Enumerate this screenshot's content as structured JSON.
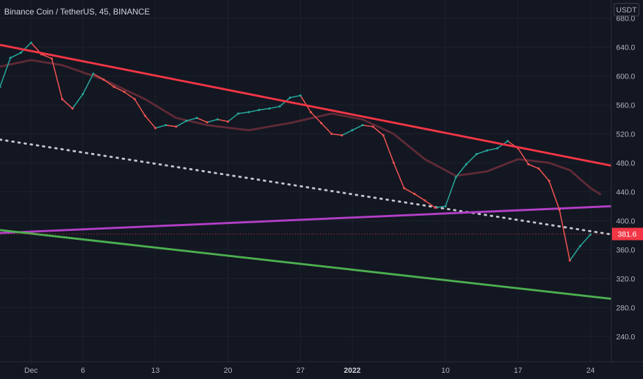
{
  "chart_data": {
    "type": "line",
    "title": "Binance Coin / TetherUS, 45, BINANCE",
    "currency_label": "USDT",
    "ylim": [
      205,
      705
    ],
    "y_ticks": [
      680.0,
      640.0,
      600.0,
      560.0,
      520.0,
      480.0,
      440.0,
      400.0,
      360.0,
      320.0,
      280.0,
      240.0
    ],
    "y_tick_labels": [
      "680.0",
      "640.0",
      "600.0",
      "560.0",
      "520.0",
      "480.0",
      "440.0",
      "400.0",
      "360.0",
      "320.0",
      "280.0",
      "240.0"
    ],
    "x_range": [
      "2021-11-28",
      "2022-01-26"
    ],
    "x_ticks": [
      {
        "date": "2021-12-01",
        "label": "Dec",
        "bold": false
      },
      {
        "date": "2021-12-06",
        "label": "6",
        "bold": false
      },
      {
        "date": "2021-12-13",
        "label": "13",
        "bold": false
      },
      {
        "date": "2021-12-20",
        "label": "20",
        "bold": false
      },
      {
        "date": "2021-12-27",
        "label": "27",
        "bold": false
      },
      {
        "date": "2022-01-01",
        "label": "2022",
        "bold": true
      },
      {
        "date": "2022-01-10",
        "label": "10",
        "bold": false
      },
      {
        "date": "2022-01-17",
        "label": "17",
        "bold": false
      },
      {
        "date": "2022-01-24",
        "label": "24",
        "bold": false
      }
    ],
    "last_price": 381.6,
    "last_price_label": "381.6",
    "grid": true,
    "series": [
      {
        "kind": "price",
        "color": "#26a69a",
        "down_color": "#ef5350",
        "x": [
          "2021-11-28",
          "2021-11-29",
          "2021-11-30",
          "2021-12-01",
          "2021-12-02",
          "2021-12-03",
          "2021-12-04",
          "2021-12-05",
          "2021-12-06",
          "2021-12-07",
          "2021-12-08",
          "2021-12-09",
          "2021-12-10",
          "2021-12-11",
          "2021-12-12",
          "2021-12-13",
          "2021-12-14",
          "2021-12-15",
          "2021-12-16",
          "2021-12-17",
          "2021-12-18",
          "2021-12-19",
          "2021-12-20",
          "2021-12-21",
          "2021-12-22",
          "2021-12-23",
          "2021-12-24",
          "2021-12-25",
          "2021-12-26",
          "2021-12-27",
          "2021-12-28",
          "2021-12-29",
          "2021-12-30",
          "2021-12-31",
          "2022-01-01",
          "2022-01-02",
          "2022-01-03",
          "2022-01-04",
          "2022-01-05",
          "2022-01-06",
          "2022-01-07",
          "2022-01-08",
          "2022-01-09",
          "2022-01-10",
          "2022-01-11",
          "2022-01-12",
          "2022-01-13",
          "2022-01-14",
          "2022-01-15",
          "2022-01-16",
          "2022-01-17",
          "2022-01-18",
          "2022-01-19",
          "2022-01-20",
          "2022-01-21",
          "2022-01-22",
          "2022-01-23",
          "2022-01-24"
        ],
        "y": [
          585,
          625,
          632,
          646,
          630,
          624,
          568,
          555,
          575,
          603,
          595,
          585,
          578,
          568,
          545,
          528,
          532,
          530,
          538,
          542,
          536,
          540,
          537,
          548,
          550,
          553,
          555,
          558,
          570,
          573,
          550,
          535,
          520,
          518,
          525,
          532,
          530,
          518,
          480,
          445,
          437,
          428,
          418,
          420,
          460,
          478,
          492,
          497,
          500,
          510,
          500,
          478,
          472,
          455,
          415,
          345,
          365,
          381
        ]
      },
      {
        "kind": "moving-average",
        "color": "#5e2a35",
        "x": [
          "2021-11-28",
          "2021-12-01",
          "2021-12-04",
          "2021-12-08",
          "2021-12-12",
          "2021-12-15",
          "2021-12-18",
          "2021-12-22",
          "2021-12-26",
          "2021-12-30",
          "2022-01-02",
          "2022-01-05",
          "2022-01-08",
          "2022-01-11",
          "2022-01-14",
          "2022-01-17",
          "2022-01-20",
          "2022-01-22",
          "2022-01-24",
          "2022-01-25"
        ],
        "y": [
          613,
          622,
          615,
          595,
          568,
          542,
          532,
          525,
          535,
          548,
          540,
          520,
          485,
          462,
          468,
          485,
          480,
          470,
          445,
          436
        ]
      },
      {
        "kind": "trendline-upper",
        "color": "#f23645",
        "x": [
          "2021-11-28",
          "2022-01-26"
        ],
        "y": [
          643,
          476
        ]
      },
      {
        "kind": "trendline-dotted",
        "color": "#c2c5cc",
        "x": [
          "2021-11-28",
          "2022-01-26"
        ],
        "y": [
          512,
          381
        ]
      },
      {
        "kind": "trendline-support",
        "color": "#b33fc6",
        "x": [
          "2021-11-28",
          "2022-01-26"
        ],
        "y": [
          383,
          420
        ]
      },
      {
        "kind": "trendline-lower",
        "color": "#4caf50",
        "x": [
          "2021-11-28",
          "2022-01-26"
        ],
        "y": [
          387,
          292
        ]
      }
    ]
  },
  "colors": {
    "background": "#131722",
    "grid": "#1e222d",
    "axis_text": "#b2b5be",
    "price_tag": "#f23645"
  }
}
